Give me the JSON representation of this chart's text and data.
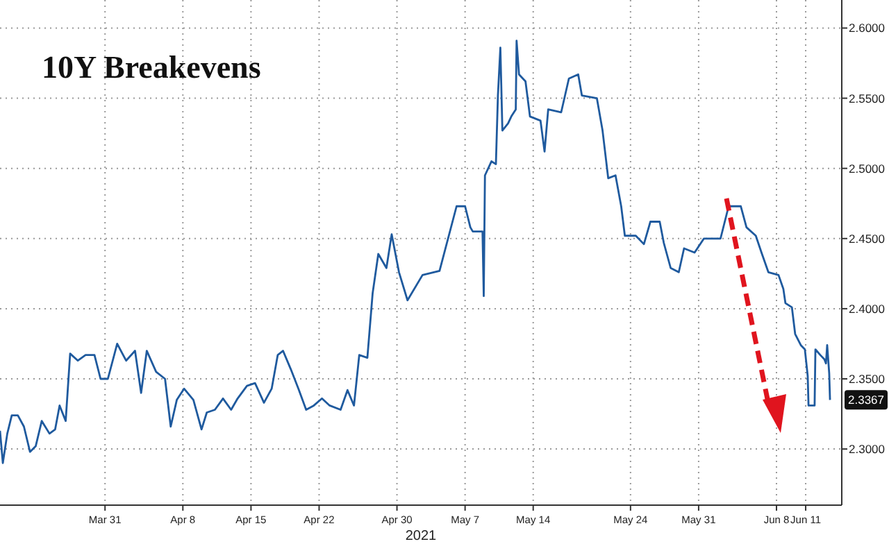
{
  "chart_data": {
    "type": "line",
    "title": "10Y Breakevens",
    "xlabel": "2021",
    "x": [
      "2021-03-20T05:00",
      "2021-03-20T12:00",
      "2021-03-20T23:00",
      "2021-03-21T10:00",
      "2021-03-22T01:00",
      "2021-03-22T16:00",
      "2021-03-23T07:00",
      "2021-03-23T21:00",
      "2021-03-24T12:00",
      "2021-03-25T07:00",
      "2021-03-25T21:00",
      "2021-03-26T08:00",
      "2021-03-26T23:00",
      "2021-03-27T10:00",
      "2021-03-28T05:00",
      "2021-03-29T00:00",
      "2021-03-29T22:00",
      "2021-03-30T13:00",
      "2021-03-31T07:00",
      "2021-04-01T06:00",
      "2021-04-02T04:00",
      "2021-04-03T02:00",
      "2021-04-03T17:00",
      "2021-04-04T07:00",
      "2021-04-05T06:00",
      "2021-04-06T04:00",
      "2021-04-06T18:00",
      "2021-04-07T09:00",
      "2021-04-08T03:00",
      "2021-04-09T02:00",
      "2021-04-09T22:00",
      "2021-04-10T11:00",
      "2021-04-11T07:00",
      "2021-04-12T03:00",
      "2021-04-12T23:00",
      "2021-04-13T15:00",
      "2021-04-14T14:00",
      "2021-04-15T10:00",
      "2021-04-16T08:00",
      "2021-04-17T03:00",
      "2021-04-17T18:00",
      "2021-04-18T07:00",
      "2021-04-19T02:00",
      "2021-04-19T21:00",
      "2021-04-20T16:00",
      "2021-04-21T11:00",
      "2021-04-22T07:00",
      "2021-04-23T02:00",
      "2021-04-24T05:00",
      "2021-04-24T22:00",
      "2021-04-25T14:00",
      "2021-04-26T03:00",
      "2021-04-26T23:00",
      "2021-04-27T12:00",
      "2021-04-28T02:00",
      "2021-04-28T22:00",
      "2021-04-29T11:00",
      "2021-04-30T05:00",
      "2021-05-01T02:00",
      "2021-05-02T15:00",
      "2021-05-04T09:00",
      "2021-05-06T03:00",
      "2021-05-07T00:00",
      "2021-05-07T13:00",
      "2021-05-07T19:00",
      "2021-05-08T19:00",
      "2021-05-08T22:00",
      "2021-05-09T01:00",
      "2021-05-09T17:00",
      "2021-05-10T04:00",
      "2021-05-10T09:00",
      "2021-05-10T15:00",
      "2021-05-10T20:00",
      "2021-05-11T10:00",
      "2021-05-11T18:00",
      "2021-05-12T05:00",
      "2021-05-12T07:00",
      "2021-05-12T13:00",
      "2021-05-13T05:00",
      "2021-05-13T16:00",
      "2021-05-14T18:00",
      "2021-05-15T04:00",
      "2021-05-15T13:00",
      "2021-05-16T21:00",
      "2021-05-17T16:00",
      "2021-05-18T15:00",
      "2021-05-19T00:00",
      "2021-05-20T13:00",
      "2021-05-21T03:00",
      "2021-05-21T17:00",
      "2021-05-22T11:00",
      "2021-05-23T01:00",
      "2021-05-23T10:00",
      "2021-05-24T13:00",
      "2021-05-25T09:00",
      "2021-05-26T01:00",
      "2021-05-27T00:00",
      "2021-05-27T10:00",
      "2021-05-28T03:00",
      "2021-05-28T23:00",
      "2021-05-29T12:00",
      "2021-05-30T14:00",
      "2021-05-31T13:00",
      "2021-06-02T06:00",
      "2021-06-03T02:00",
      "2021-06-04T08:00",
      "2021-06-04T22:00",
      "2021-06-05T21:00",
      "2021-06-06T11:00",
      "2021-06-07T04:00",
      "2021-06-08T05:00",
      "2021-06-08T17:00",
      "2021-06-08T22:00",
      "2021-06-09T14:00",
      "2021-06-09T22:00",
      "2021-06-10T12:00",
      "2021-06-10T22:00",
      "2021-06-11T05:00",
      "2021-06-11T07:00",
      "2021-06-11T17:00",
      "2021-06-11T22:00",
      "2021-06-12T00:00",
      "2021-06-12T12:00",
      "2021-06-12T22:00",
      "2021-06-13T02:00",
      "2021-06-13T05:00",
      "2021-06-13T10:00",
      "2021-06-13T12:00"
    ],
    "series": [
      {
        "color": "#1f5a9e",
        "values": [
          2.313,
          2.29,
          2.311,
          2.324,
          2.324,
          2.316,
          2.298,
          2.302,
          2.32,
          2.311,
          2.314,
          2.331,
          2.32,
          2.368,
          2.363,
          2.367,
          2.367,
          2.35,
          2.35,
          2.375,
          2.363,
          2.37,
          2.34,
          2.37,
          2.355,
          2.35,
          2.316,
          2.335,
          2.343,
          2.335,
          2.314,
          2.326,
          2.328,
          2.336,
          2.328,
          2.336,
          2.345,
          2.347,
          2.333,
          2.343,
          2.367,
          2.37,
          2.357,
          2.343,
          2.328,
          2.331,
          2.336,
          2.331,
          2.328,
          2.342,
          2.331,
          2.367,
          2.365,
          2.411,
          2.439,
          2.429,
          2.453,
          2.426,
          2.406,
          2.424,
          2.427,
          2.473,
          2.473,
          2.458,
          2.455,
          2.455,
          2.409,
          2.495,
          2.505,
          2.503,
          2.552,
          2.586,
          2.527,
          2.532,
          2.537,
          2.542,
          2.591,
          2.567,
          2.562,
          2.537,
          2.534,
          2.512,
          2.542,
          2.54,
          2.564,
          2.567,
          2.552,
          2.55,
          2.527,
          2.493,
          2.495,
          2.473,
          2.452,
          2.452,
          2.446,
          2.462,
          2.462,
          2.447,
          2.429,
          2.426,
          2.443,
          2.44,
          2.45,
          2.45,
          2.473,
          2.473,
          2.458,
          2.452,
          2.44,
          2.426,
          2.424,
          2.414,
          2.404,
          2.401,
          2.382,
          2.374,
          2.371,
          2.352,
          2.331,
          2.331,
          2.331,
          2.371,
          2.367,
          2.364,
          2.361,
          2.374,
          2.354,
          2.335
        ]
      }
    ],
    "xlim": [
      "2021-03-20T05:00",
      "2021-06-14T17:00"
    ],
    "xticks": [
      {
        "value": "2021-03-31",
        "label": "Mar 31"
      },
      {
        "value": "2021-04-08",
        "label": "Apr 8"
      },
      {
        "value": "2021-04-15",
        "label": "Apr 15"
      },
      {
        "value": "2021-04-22",
        "label": "Apr 22"
      },
      {
        "value": "2021-04-30",
        "label": "Apr 30"
      },
      {
        "value": "2021-05-07",
        "label": "May 7"
      },
      {
        "value": "2021-05-14",
        "label": "May 14"
      },
      {
        "value": "2021-05-24",
        "label": "May 24"
      },
      {
        "value": "2021-05-31",
        "label": "May 31"
      },
      {
        "value": "2021-06-08",
        "label": "Jun 8"
      },
      {
        "value": "2021-06-11",
        "label": "Jun 11"
      }
    ],
    "ylim": [
      2.26,
      2.62
    ],
    "yticks": [
      {
        "value": 2.3,
        "label": "2.3000"
      },
      {
        "value": 2.35,
        "label": "2.3500"
      },
      {
        "value": 2.4,
        "label": "2.4000"
      },
      {
        "value": 2.45,
        "label": "2.4500"
      },
      {
        "value": 2.5,
        "label": "2.5000"
      },
      {
        "value": 2.55,
        "label": "2.5500"
      },
      {
        "value": 2.6,
        "label": "2.6000"
      }
    ],
    "grid": true,
    "marker": "none",
    "line_style": "solid",
    "annotations": [
      "2.3367"
    ]
  }
}
